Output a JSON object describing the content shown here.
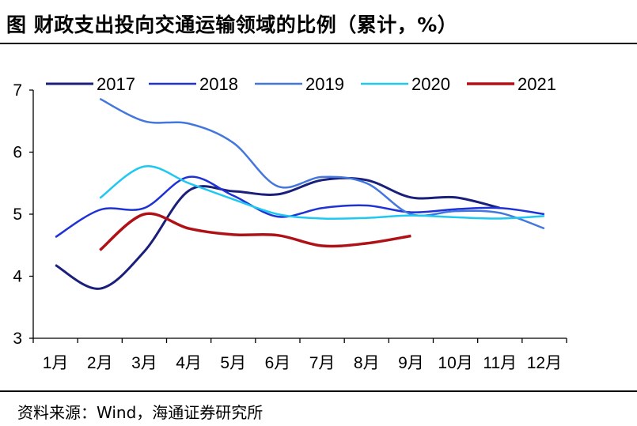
{
  "header": {
    "title": "图  财政支出投向交通运输领域的比例（累计，%）"
  },
  "footer": {
    "source": "资料来源：Wind，海通证券研究所"
  },
  "chart_data": {
    "type": "line",
    "title": "图  财政支出投向交通运输领域的比例（累计，%）",
    "xlabel": "",
    "ylabel": "",
    "categories": [
      "1月",
      "2月",
      "3月",
      "4月",
      "5月",
      "6月",
      "7月",
      "8月",
      "9月",
      "10月",
      "11月",
      "12月"
    ],
    "ylim": [
      3,
      7
    ],
    "yticks": [
      3,
      4,
      5,
      6,
      7
    ],
    "legend_position": "top",
    "series": [
      {
        "name": "2017",
        "color": "#1a1f7a",
        "width": 3,
        "values": [
          4.18,
          3.8,
          4.4,
          5.38,
          5.37,
          5.32,
          5.55,
          5.55,
          5.27,
          5.27,
          5.1,
          null
        ]
      },
      {
        "name": "2018",
        "color": "#1f32d6",
        "width": 2.5,
        "values": [
          4.63,
          5.07,
          5.1,
          5.6,
          5.3,
          4.96,
          5.1,
          5.14,
          5.03,
          5.08,
          5.1,
          5.0
        ]
      },
      {
        "name": "2019",
        "color": "#4477dd",
        "width": 2.5,
        "values": [
          null,
          6.86,
          6.5,
          6.46,
          6.15,
          5.45,
          5.6,
          5.5,
          5.0,
          5.05,
          5.02,
          4.77
        ]
      },
      {
        "name": "2020",
        "color": "#1ec8f0",
        "width": 2.5,
        "values": [
          null,
          5.26,
          5.77,
          5.5,
          5.24,
          5.0,
          4.93,
          4.94,
          4.98,
          4.95,
          4.93,
          4.97
        ]
      },
      {
        "name": "2021",
        "color": "#b01116",
        "width": 3.5,
        "values": [
          null,
          4.42,
          5.0,
          4.77,
          4.67,
          4.66,
          4.49,
          4.53,
          4.65,
          null,
          null,
          null
        ]
      }
    ]
  }
}
